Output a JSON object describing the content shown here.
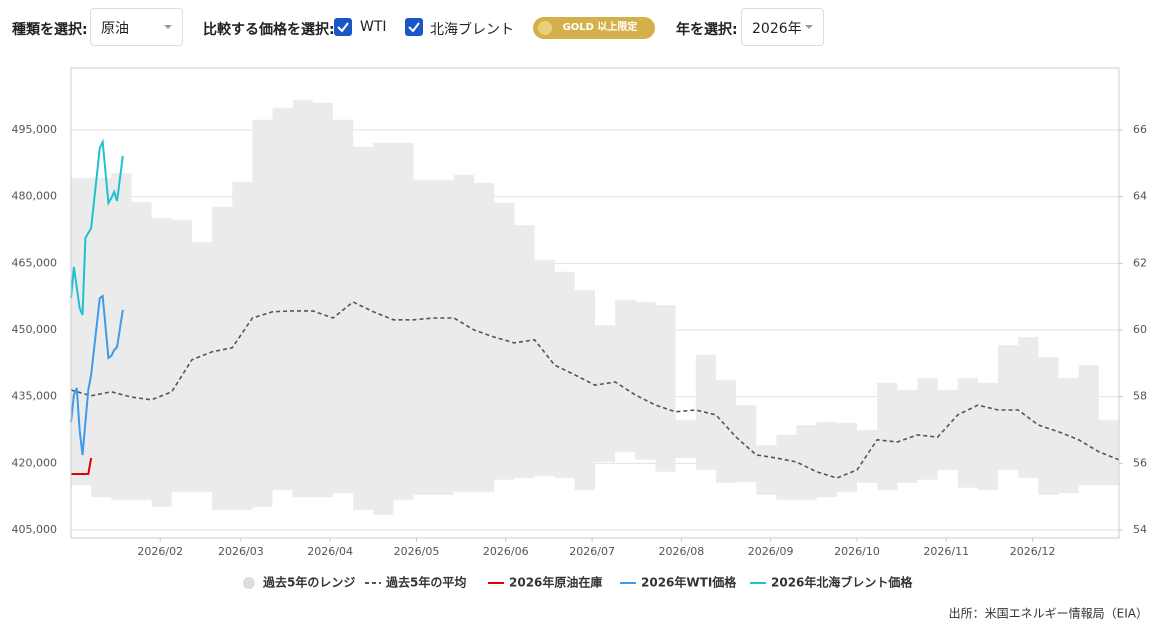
{
  "controls": {
    "type_label": "種類を選択:",
    "type_value": "原油",
    "compare_label": "比較する価格を選択:",
    "checkboxes": [
      {
        "label": "WTI",
        "checked": true
      },
      {
        "label": "北海ブレント",
        "checked": true
      }
    ],
    "badge": "GOLD 以上限定",
    "year_label": "年を選択:",
    "year_value": "2026年"
  },
  "chart_data": {
    "type": "line",
    "xlim": [
      1,
      365
    ],
    "xticks": [
      {
        "value": 32,
        "label": "2026/02"
      },
      {
        "value": 60,
        "label": "2026/03"
      },
      {
        "value": 91,
        "label": "2026/04"
      },
      {
        "value": 121,
        "label": "2026/05"
      },
      {
        "value": 152,
        "label": "2026/06"
      },
      {
        "value": 182,
        "label": "2026/07"
      },
      {
        "value": 213,
        "label": "2026/08"
      },
      {
        "value": 244,
        "label": "2026/09"
      },
      {
        "value": 274,
        "label": "2026/10"
      },
      {
        "value": 305,
        "label": "2026/11"
      },
      {
        "value": 335,
        "label": "2026/12"
      }
    ],
    "ylim": [
      403200,
      508950
    ],
    "yticks": [
      {
        "value": 405000,
        "label": "405,000"
      },
      {
        "value": 420000,
        "label": "420,000"
      },
      {
        "value": 435000,
        "label": "435,000"
      },
      {
        "value": 450000,
        "label": "450,000"
      },
      {
        "value": 465000,
        "label": "465,000"
      },
      {
        "value": 480000,
        "label": "480,000"
      },
      {
        "value": 495000,
        "label": "495,000"
      }
    ],
    "y2lim": [
      53.76,
      67.86
    ],
    "y2ticks": [
      54,
      56,
      58,
      60,
      62,
      64,
      66
    ],
    "grid": true,
    "legend": "bottom",
    "source": "出所：米国エネルギー情報局（EIA）",
    "series": [
      {
        "name": "過去5年のレンジ",
        "color": "#ebebeb",
        "x": [
          1,
          8,
          15,
          22,
          29,
          36,
          43,
          50,
          57,
          64,
          71,
          78,
          85,
          92,
          99,
          106,
          113,
          120,
          127,
          134,
          141,
          148,
          155,
          162,
          169,
          176,
          183,
          190,
          197,
          204,
          211,
          218,
          225,
          232,
          239,
          246,
          253,
          260,
          267,
          274,
          281,
          288,
          295,
          302,
          309,
          316,
          323,
          330,
          337,
          344,
          351,
          358,
          365
        ],
        "high": [
          484200,
          484200,
          485300,
          478800,
          475200,
          474800,
          469800,
          477700,
          483300,
          497300,
          500000,
          501800,
          501100,
          497300,
          491200,
          492100,
          492100,
          483800,
          483800,
          484900,
          483100,
          478600,
          473600,
          465800,
          463100,
          459000,
          451100,
          456800,
          456300,
          455600,
          429800,
          444400,
          438800,
          433100,
          424100,
          426400,
          428600,
          429300,
          429100,
          427500,
          438100,
          436500,
          439200,
          436500,
          439200,
          438100,
          446600,
          448400,
          443900,
          439200,
          442100,
          429800,
          429800
        ],
        "low": [
          415100,
          412400,
          411800,
          411800,
          410200,
          413600,
          413600,
          409500,
          409500,
          410200,
          414000,
          412400,
          412400,
          413300,
          409500,
          408400,
          411800,
          412900,
          412900,
          413600,
          413600,
          416300,
          416700,
          417200,
          416700,
          414000,
          420300,
          422600,
          420800,
          418100,
          421200,
          418500,
          415600,
          415800,
          412900,
          411800,
          411800,
          412400,
          413600,
          415600,
          414000,
          415600,
          416300,
          418500,
          414500,
          414000,
          418500,
          416700,
          412900,
          413300,
          415100,
          415100,
          414000
        ]
      },
      {
        "name": "過去5年の平均",
        "color": "#555555",
        "dash": true,
        "x": [
          1,
          8,
          15,
          22,
          29,
          36,
          43,
          50,
          57,
          64,
          71,
          78,
          85,
          92,
          99,
          106,
          113,
          120,
          127,
          134,
          141,
          148,
          155,
          162,
          169,
          176,
          183,
          190,
          197,
          204,
          211,
          218,
          225,
          232,
          239,
          246,
          253,
          260,
          267,
          274,
          281,
          288,
          295,
          302,
          309,
          316,
          323,
          330,
          337,
          344,
          351,
          358,
          365
        ],
        "values": [
          436500,
          435200,
          436100,
          434900,
          434300,
          436100,
          443300,
          445100,
          446000,
          452700,
          454100,
          454300,
          454300,
          452700,
          456300,
          454100,
          452300,
          452300,
          452700,
          452700,
          450000,
          448400,
          447100,
          447800,
          442100,
          439900,
          437600,
          438300,
          435400,
          433100,
          431600,
          432000,
          430900,
          425900,
          421900,
          421200,
          420300,
          418100,
          416700,
          418500,
          425300,
          424800,
          426400,
          425900,
          430900,
          433100,
          432000,
          432000,
          428600,
          427100,
          425300,
          422600,
          420800
        ]
      },
      {
        "name": "2026年原油在庫",
        "color": "#e00000",
        "x": [
          1,
          7,
          8
        ],
        "values": [
          417600,
          417600,
          421200
        ]
      },
      {
        "name": "2026年WTI価格",
        "color": "#3d9be9",
        "axis": "y2",
        "x": [
          1,
          2,
          3,
          4,
          5,
          7,
          8,
          11,
          12,
          14,
          15,
          16,
          17,
          19
        ],
        "values": [
          57.24,
          58.05,
          58.26,
          57.0,
          56.25,
          58.2,
          58.65,
          60.96,
          61.02,
          59.16,
          59.22,
          59.4,
          59.49,
          60.6
        ]
      },
      {
        "name": "2026年北海ブレント価格",
        "color": "#1fc0d0",
        "axis": "y2",
        "x": [
          1,
          2,
          4,
          5,
          6,
          8,
          11,
          12,
          14,
          15,
          16,
          17,
          19
        ],
        "values": [
          60.96,
          61.89,
          60.66,
          60.45,
          62.76,
          63.06,
          65.46,
          65.64,
          63.81,
          63.96,
          64.14,
          63.87,
          65.22
        ]
      }
    ]
  }
}
